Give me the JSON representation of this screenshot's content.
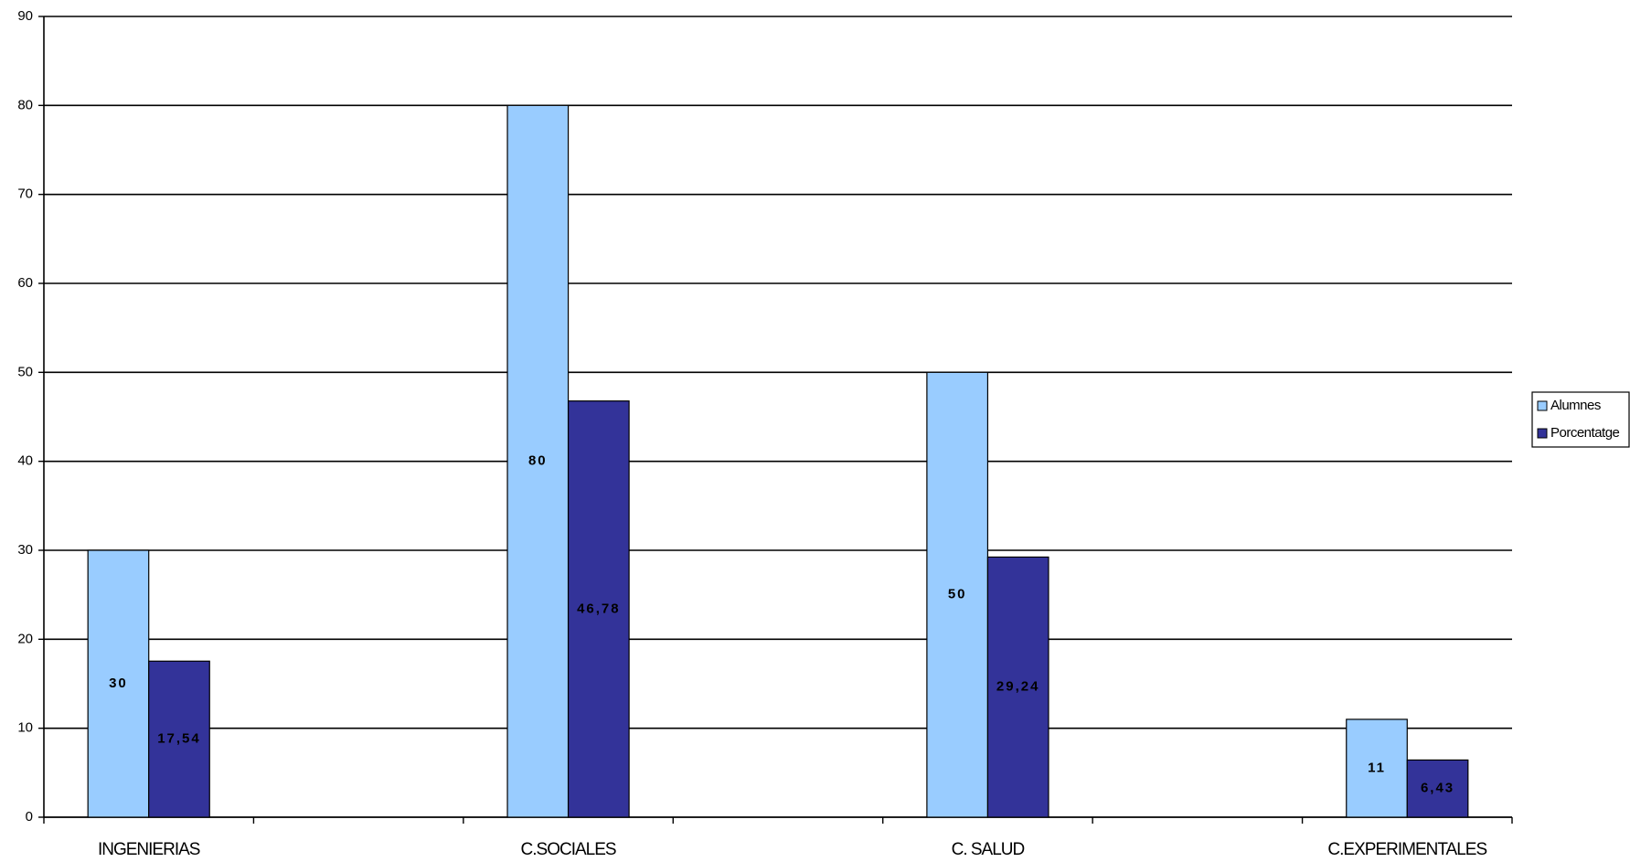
{
  "chart_data": {
    "type": "bar",
    "categories": [
      "INGENIERIAS",
      null,
      "C.SOCIALES",
      null,
      "C. SALUD",
      null,
      "C.EXPERIMENTALES"
    ],
    "series": [
      {
        "name": "Alumnes",
        "color": "#99ccff",
        "values": [
          30,
          null,
          80,
          null,
          50,
          null,
          11
        ]
      },
      {
        "name": "Porcentatge",
        "color": "#333399",
        "values": [
          17.54,
          null,
          46.78,
          null,
          29.24,
          null,
          6.43
        ],
        "value_labels": [
          "17,54",
          null,
          "46,78",
          null,
          "29,24",
          null,
          "6,43"
        ]
      }
    ],
    "ylim": [
      0,
      90
    ],
    "yticks": [
      0,
      10,
      20,
      30,
      40,
      50,
      60,
      70,
      80,
      90
    ],
    "grid": true,
    "legend": "right"
  }
}
